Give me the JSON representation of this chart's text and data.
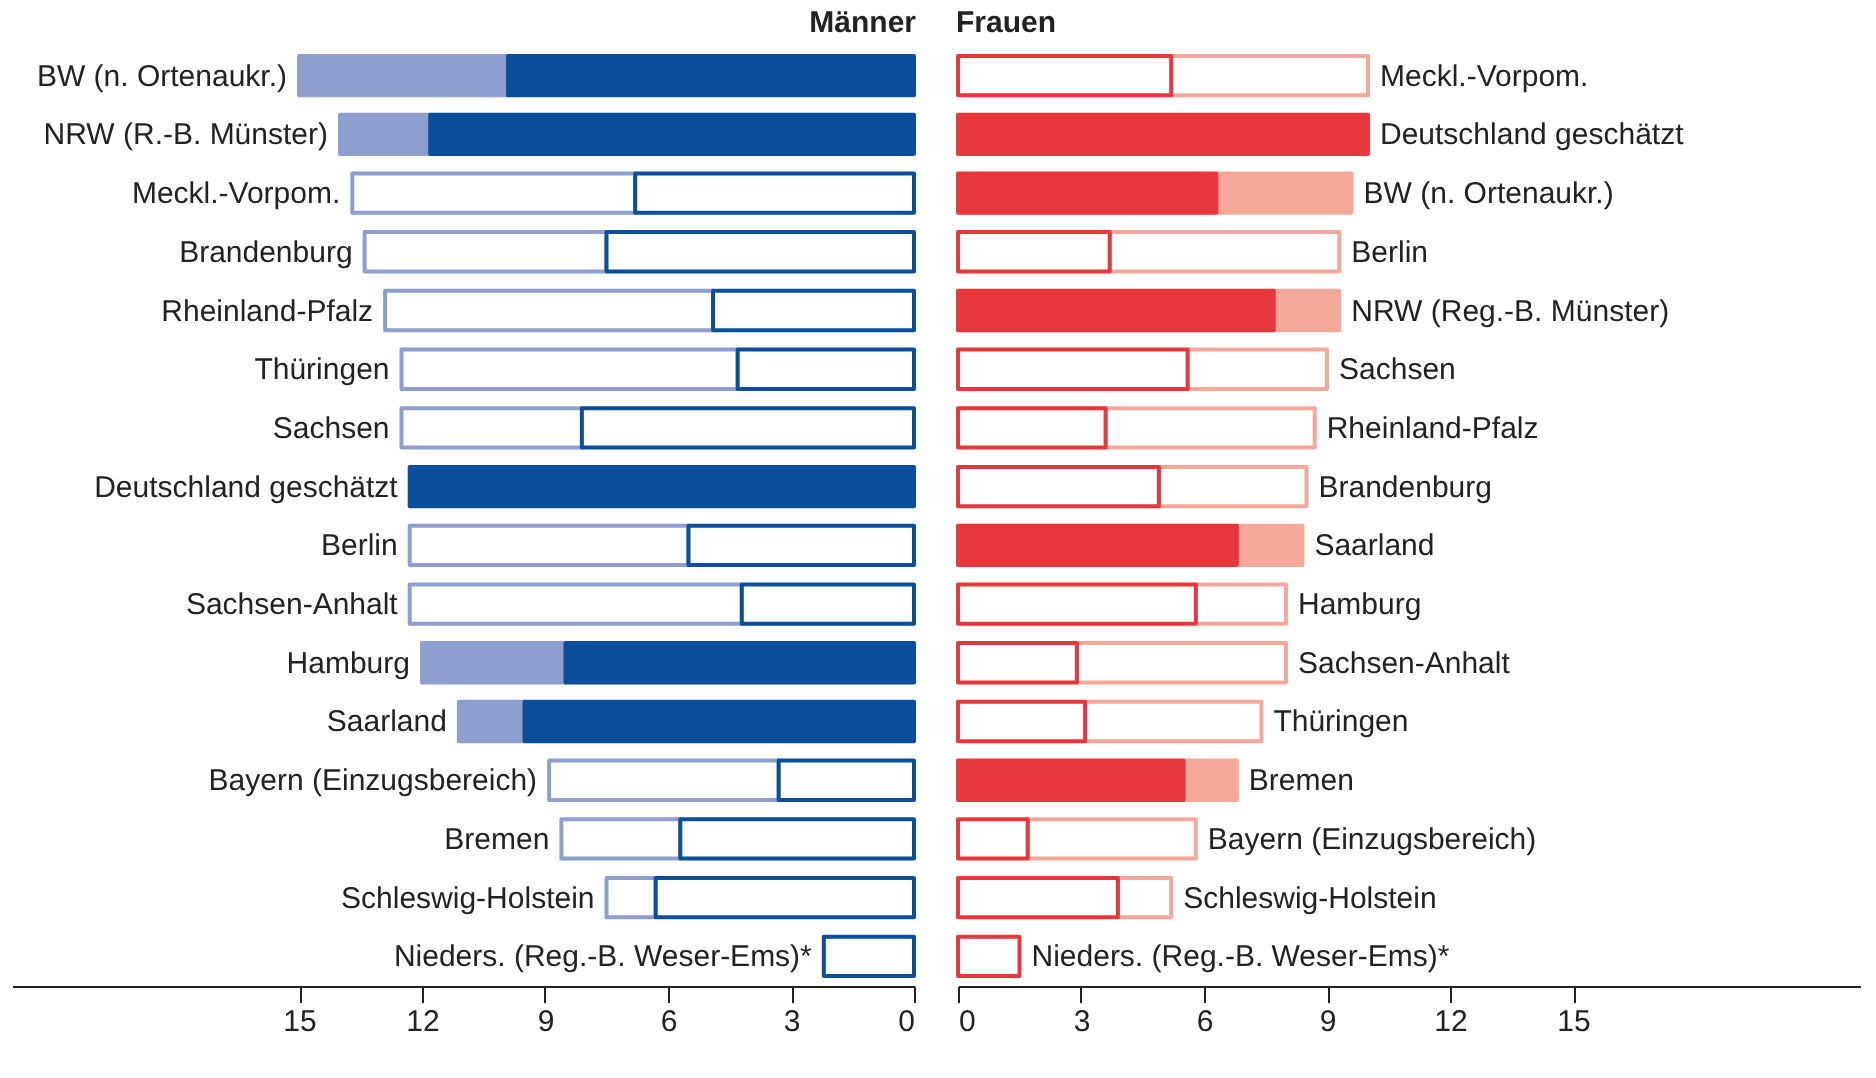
{
  "chart_data": [
    {
      "type": "bar",
      "orientation": "horizontal",
      "stacked": true,
      "title": "Männer",
      "categories": [
        "BW (n. Ortenaukr.)",
        "NRW (R.-B. Münster)",
        "Meckl.-Vorpom.",
        "Brandenburg",
        "Rheinland-Pfalz",
        "Thüringen",
        "Sachsen",
        "Deutschland geschätzt",
        "Berlin",
        "Sachsen-Anhalt",
        "Hamburg",
        "Saarland",
        "Bayern (Einzugsbereich)",
        "Bremen",
        "Schleswig-Holstein",
        "Nieders. (Reg.-B. Weser-Ems)*"
      ],
      "series": [
        {
          "color": "#0b4f9c",
          "colors": [
            "#0b4f9c",
            "#0b4f9c",
            "#ffffff",
            "#ffffff",
            "#ffffff",
            "#ffffff",
            "#ffffff",
            "#0b4f9c",
            "#ffffff",
            "#ffffff",
            "#0b4f9c",
            "#0b4f9c",
            "#ffffff",
            "#ffffff",
            "#ffffff",
            "#ffffff"
          ],
          "values": [
            9.9,
            11.8,
            6.8,
            7.5,
            4.9,
            4.3,
            8.1,
            12.3,
            5.5,
            4.2,
            8.5,
            9.5,
            3.3,
            5.7,
            6.3,
            2.2
          ]
        },
        {
          "color": "#8c9fce",
          "colors": [
            "#8c9fce",
            "#8c9fce",
            "#ffffff",
            "#ffffff",
            "#ffffff",
            "#ffffff",
            "#ffffff",
            "#8c9fce",
            "#ffffff",
            "#ffffff",
            "#8c9fce",
            "#8c9fce",
            "#ffffff",
            "#ffffff",
            "#ffffff",
            "#ffffff"
          ],
          "values": [
            5.1,
            2.2,
            6.9,
            5.9,
            8.0,
            8.2,
            4.4,
            0,
            6.8,
            8.1,
            3.5,
            1.6,
            5.6,
            2.9,
            1.2,
            0
          ]
        }
      ],
      "xlim": [
        22,
        0
      ],
      "xticks": [
        15,
        12,
        9,
        6,
        3,
        0
      ],
      "tick_labels": "x",
      "grid": false
    },
    {
      "type": "bar",
      "orientation": "horizontal",
      "stacked": true,
      "title": "Frauen",
      "categories": [
        "Meckl.-Vorpom.",
        "Deutschland geschätzt",
        "BW (n. Ortenaukr.)",
        "Berlin",
        "NRW (Reg.-B. Münster)",
        "Sachsen",
        "Rheinland-Pfalz",
        "Brandenburg",
        "Saarland",
        "Hamburg",
        "Sachsen-Anhalt",
        "Thüringen",
        "Bremen",
        "Bayern (Einzugsbereich)",
        "Schleswig-Holstein",
        "Nieders. (Reg.-B. Weser-Ems)*"
      ],
      "series": [
        {
          "color": "#e8373c",
          "colors": [
            "#ffffff",
            "#e8373c",
            "#e8373c",
            "#ffffff",
            "#e8373c",
            "#ffffff",
            "#ffffff",
            "#ffffff",
            "#e8373c",
            "#ffffff",
            "#ffffff",
            "#ffffff",
            "#e8373c",
            "#ffffff",
            "#ffffff",
            "#ffffff"
          ],
          "values": [
            5.2,
            10.0,
            6.3,
            3.7,
            7.7,
            5.6,
            3.6,
            4.9,
            6.8,
            5.8,
            2.9,
            3.1,
            5.5,
            1.7,
            3.9,
            1.5
          ]
        },
        {
          "color": "#f4a89a",
          "colors": [
            "#ffffff",
            "#f4a89a",
            "#f4a89a",
            "#ffffff",
            "#f4a89a",
            "#ffffff",
            "#ffffff",
            "#ffffff",
            "#f4a89a",
            "#ffffff",
            "#ffffff",
            "#ffffff",
            "#f4a89a",
            "#ffffff",
            "#ffffff",
            "#ffffff"
          ],
          "values": [
            4.8,
            0,
            3.3,
            5.6,
            1.6,
            3.4,
            5.1,
            3.6,
            1.6,
            2.2,
            5.1,
            4.3,
            1.3,
            4.1,
            1.3,
            0
          ]
        }
      ],
      "xlim": [
        0,
        22
      ],
      "xticks": [
        0,
        3,
        6,
        9,
        12,
        15
      ],
      "tick_labels": "x",
      "grid": false
    }
  ]
}
